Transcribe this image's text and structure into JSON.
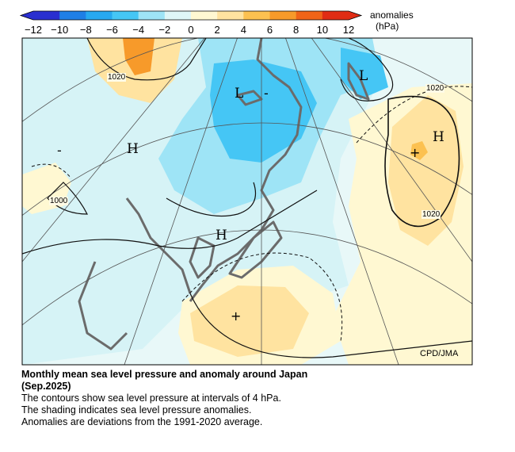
{
  "legend": {
    "title": "anomalies",
    "unit": "(hPa)",
    "ticks": [
      "−12",
      "−10",
      "−8",
      "−6",
      "−4",
      "−2",
      "0",
      "2",
      "4",
      "6",
      "8",
      "10",
      "12"
    ],
    "colors": [
      "#2a2fd0",
      "#1f7fe6",
      "#27a9f0",
      "#45c6f5",
      "#9ee4f6",
      "#dff6f7",
      "#fff8d2",
      "#ffe3a0",
      "#fcc150",
      "#f79a2a",
      "#f06418",
      "#e02c14"
    ]
  },
  "map": {
    "labels": {
      "low_east": "L",
      "low_center": "L",
      "high_pacific": "H",
      "high_china": "H",
      "high_korea": "H",
      "plus_pacific": "+",
      "plus_south": "+",
      "minus_center": "-",
      "minus_west": "-"
    },
    "isobars": {
      "top_left": "1020",
      "top_right": "1020",
      "right_mid": "1020",
      "left_low": "1000"
    },
    "credit": "CPD/JMA"
  },
  "caption": {
    "title_line1": "Monthly mean sea level pressure and anomaly around Japan",
    "title_line2": "(Sep.2025)",
    "line1": "The contours show sea level pressure at intervals of 4 hPa.",
    "line2": "The shading indicates sea level pressure anomalies.",
    "line3": "Anomalies are deviations from the 1991-2020 average."
  }
}
